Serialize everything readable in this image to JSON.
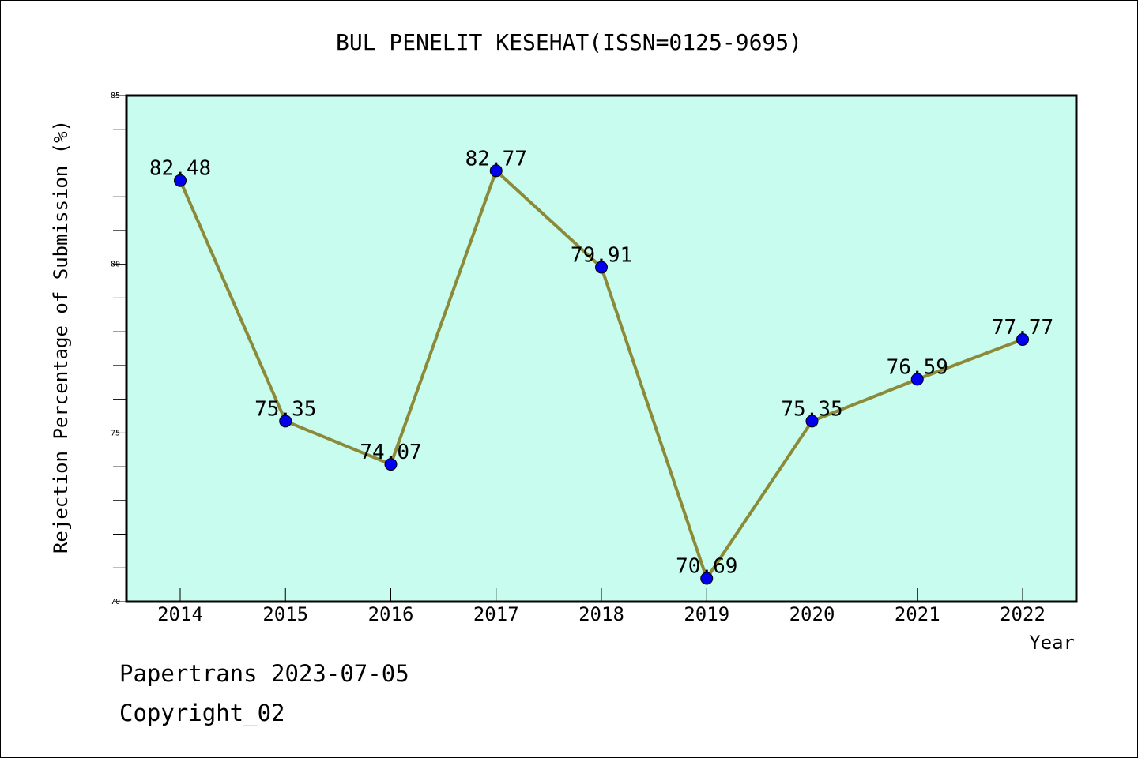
{
  "chart_data": {
    "type": "line",
    "title": "BUL PENELIT KESEHAT(ISSN=0125-9695)",
    "xlabel": "Year",
    "ylabel": "Rejection Percentage of Submission (%)",
    "categories": [
      "2014",
      "2015",
      "2016",
      "2017",
      "2018",
      "2019",
      "2020",
      "2021",
      "2022"
    ],
    "series": [
      {
        "values": [
          82.48,
          75.35,
          74.07,
          82.77,
          79.91,
          70.69,
          75.35,
          76.59,
          77.77
        ],
        "labels": [
          "82.48",
          "75.35",
          "74.07",
          "82.77",
          "79.91",
          "70.69",
          "75.35",
          "76.59",
          "77.77"
        ],
        "line_color": "#8b8a38",
        "marker_color": "#0000ee"
      }
    ],
    "ylim": [
      70,
      85
    ],
    "y_ticks": [
      "70",
      "75",
      "80",
      "85"
    ],
    "grid": false,
    "legend": "none",
    "plot_background": "#c8fcee"
  },
  "footer": {
    "line1": "Papertrans 2023-07-05",
    "line2": "Copyright_02"
  }
}
